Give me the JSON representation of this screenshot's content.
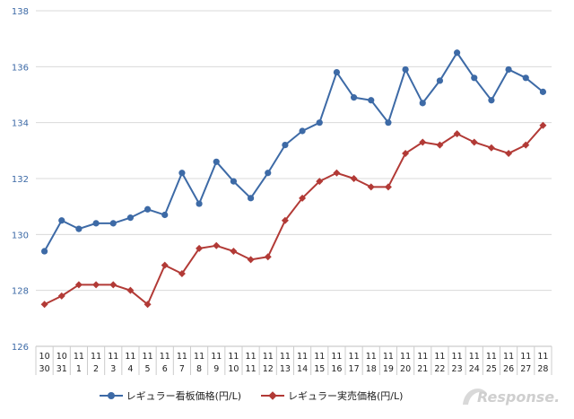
{
  "chart_data": {
    "type": "line",
    "categories": [
      [
        "10",
        "30"
      ],
      [
        "10",
        "31"
      ],
      [
        "11",
        "1"
      ],
      [
        "11",
        "2"
      ],
      [
        "11",
        "3"
      ],
      [
        "11",
        "4"
      ],
      [
        "11",
        "5"
      ],
      [
        "11",
        "6"
      ],
      [
        "11",
        "7"
      ],
      [
        "11",
        "8"
      ],
      [
        "11",
        "9"
      ],
      [
        "11",
        "10"
      ],
      [
        "11",
        "11"
      ],
      [
        "11",
        "12"
      ],
      [
        "11",
        "13"
      ],
      [
        "11",
        "14"
      ],
      [
        "11",
        "15"
      ],
      [
        "11",
        "16"
      ],
      [
        "11",
        "17"
      ],
      [
        "11",
        "18"
      ],
      [
        "11",
        "19"
      ],
      [
        "11",
        "20"
      ],
      [
        "11",
        "21"
      ],
      [
        "11",
        "22"
      ],
      [
        "11",
        "23"
      ],
      [
        "11",
        "24"
      ],
      [
        "11",
        "25"
      ],
      [
        "11",
        "26"
      ],
      [
        "11",
        "27"
      ],
      [
        "11",
        "28"
      ]
    ],
    "series": [
      {
        "name": "レギュラー看板価格(円/L)",
        "color": "#3d6aa6",
        "marker": "circle",
        "values": [
          129.4,
          130.5,
          130.2,
          130.4,
          130.4,
          130.6,
          130.9,
          130.7,
          132.2,
          131.1,
          132.6,
          131.9,
          131.3,
          132.2,
          133.2,
          133.7,
          134.0,
          135.8,
          134.9,
          134.8,
          134.0,
          135.9,
          134.7,
          135.5,
          136.5,
          135.6,
          134.8,
          135.9,
          135.6,
          135.1
        ]
      },
      {
        "name": "レギュラー実売価格(円/L)",
        "color": "#b23a36",
        "marker": "diamond",
        "values": [
          127.5,
          127.8,
          128.2,
          128.2,
          128.2,
          128.0,
          127.5,
          128.9,
          128.6,
          129.5,
          129.6,
          129.4,
          129.1,
          129.2,
          130.5,
          131.3,
          131.9,
          132.2,
          132.0,
          131.7,
          131.7,
          132.9,
          133.3,
          133.2,
          133.6,
          133.3,
          133.1,
          132.9,
          133.2,
          133.9
        ]
      }
    ],
    "ylim": [
      126,
      138
    ],
    "yticks": [
      "126",
      "128",
      "130",
      "132",
      "134",
      "136",
      "138"
    ],
    "grid": true,
    "legend": "bottom",
    "title": "",
    "xlabel": "",
    "ylabel": ""
  },
  "watermark": {
    "text": "Response."
  }
}
